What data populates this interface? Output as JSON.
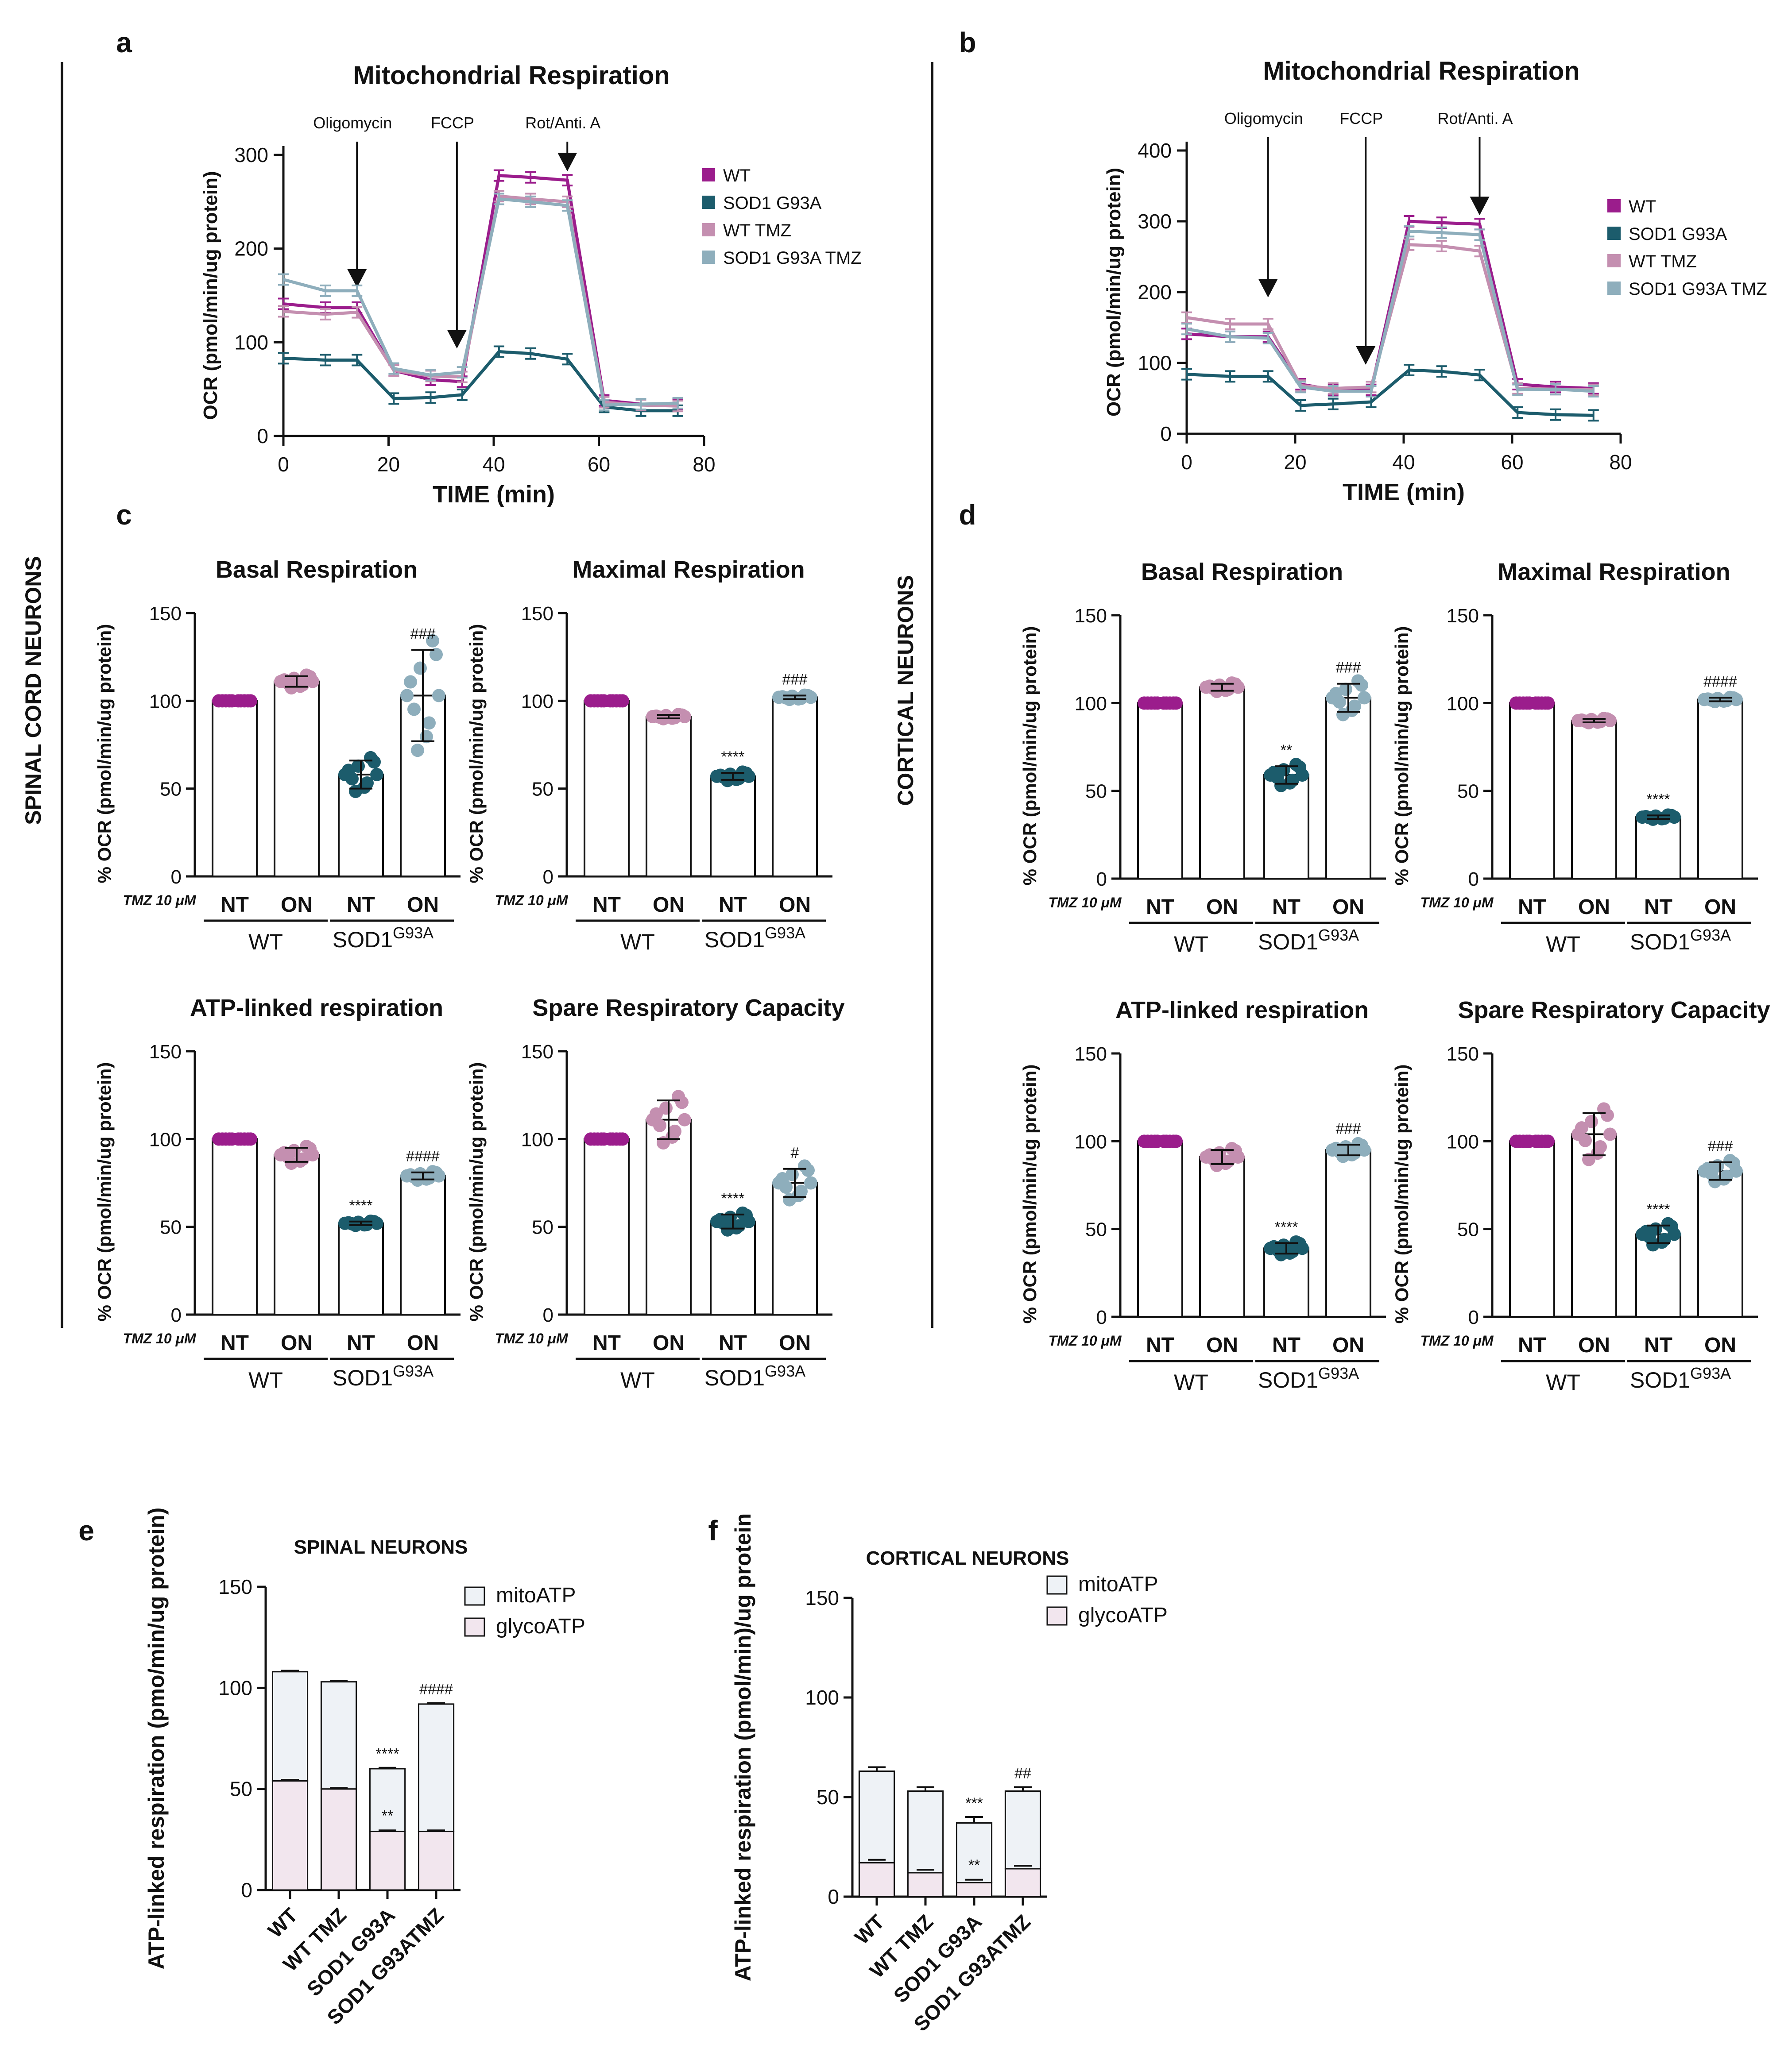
{
  "colors": {
    "wt": "#9b1d8c",
    "sod1": "#1c5c6c",
    "wt_tmz": "#c48fb0",
    "sod1_tmz": "#8eaebc",
    "axis": "#111111",
    "mito_fill": "#eef2f6",
    "glyco_fill": "#f2e6ee"
  },
  "labels": {
    "side_left": "SPINAL CORD NEURONS",
    "side_right": "CORTICAL NEURONS",
    "panel_letters": [
      "a",
      "b",
      "c",
      "d",
      "e",
      "f"
    ],
    "injections": [
      "Oligomycin",
      "FCCP",
      "Rot/Anti. A"
    ],
    "bar_xlabels": [
      "NT",
      "ON",
      "NT",
      "ON"
    ],
    "group_wt": "WT",
    "group_sod1_base": "SOD1",
    "group_sod1_sup": "G93A",
    "tmz_label": "TMZ 10 μM",
    "legend_sup": "G93A",
    "stack_xlabels": [
      "WT",
      "WT TMZ",
      "SOD1 G93A",
      "SOD1 G93ATMZ"
    ]
  },
  "chart_data": [
    {
      "id": "a",
      "type": "line",
      "title": "Mitochondrial Respiration",
      "xlabel": "TIME (min)",
      "ylabel": "OCR (pmol/min/ug protein)",
      "xlim": [
        0,
        80
      ],
      "ylim": [
        0,
        300
      ],
      "xticks": [
        0,
        20,
        40,
        60,
        80
      ],
      "yticks": [
        0,
        100,
        200,
        300
      ],
      "injections_at": [
        14,
        33,
        54
      ],
      "legend": "right",
      "x": [
        0,
        8,
        14,
        21,
        28,
        34,
        41,
        47,
        54,
        61,
        68,
        75
      ],
      "series": [
        {
          "name": "WT",
          "values": [
            141,
            137,
            137,
            70,
            60,
            58,
            278,
            276,
            273,
            38,
            34,
            34
          ]
        },
        {
          "name": "SOD1 G93A",
          "values": [
            83,
            81,
            81,
            40,
            41,
            44,
            90,
            88,
            82,
            31,
            27,
            27
          ]
        },
        {
          "name": "WT TMZ",
          "values": [
            133,
            130,
            132,
            70,
            64,
            63,
            256,
            253,
            250,
            36,
            33,
            32
          ]
        },
        {
          "name": "SOD1 G93A TMZ",
          "values": [
            167,
            155,
            155,
            72,
            65,
            68,
            253,
            250,
            246,
            33,
            34,
            35
          ]
        }
      ]
    },
    {
      "id": "b",
      "type": "line",
      "title": "Mitochondrial Respiration",
      "xlabel": "TIME (min)",
      "ylabel": "OCR (pmol/min/ug protein)",
      "xlim": [
        0,
        80
      ],
      "ylim": [
        0,
        400
      ],
      "xticks": [
        0,
        20,
        40,
        60,
        80
      ],
      "yticks": [
        0,
        100,
        200,
        300,
        400
      ],
      "injections_at": [
        15,
        33,
        54
      ],
      "legend": "right",
      "x": [
        0,
        8,
        15,
        21,
        27,
        34,
        41,
        47,
        54,
        61,
        68,
        75
      ],
      "series": [
        {
          "name": "WT",
          "values": [
            141,
            137,
            137,
            70,
            62,
            62,
            300,
            298,
            296,
            70,
            66,
            64
          ]
        },
        {
          "name": "SOD1 G93A",
          "values": [
            84,
            81,
            81,
            40,
            42,
            45,
            90,
            88,
            83,
            30,
            27,
            26
          ]
        },
        {
          "name": "WT TMZ",
          "values": [
            164,
            155,
            155,
            68,
            64,
            66,
            267,
            265,
            258,
            64,
            63,
            62
          ]
        },
        {
          "name": "SOD1 G93A TMZ",
          "values": [
            148,
            137,
            135,
            66,
            60,
            60,
            286,
            284,
            281,
            62,
            63,
            60
          ]
        }
      ]
    },
    {
      "id": "c1",
      "type": "bar",
      "title": "Basal Respiration",
      "ylabel": "% OCR (pmol/min/ug protein)",
      "ylim": [
        0,
        150
      ],
      "yticks": [
        0,
        50,
        100,
        150
      ],
      "categories": [
        "WT NT",
        "WT ON",
        "SOD1G93A NT",
        "SOD1G93A ON"
      ],
      "values": [
        100,
        111,
        58,
        103
      ],
      "errors": [
        0,
        3,
        8,
        26
      ],
      "annotations": [
        "",
        "",
        "",
        "###"
      ]
    },
    {
      "id": "c2",
      "type": "bar",
      "title": "Maximal Respiration",
      "ylabel": "% OCR (pmol/min/ug protein)",
      "ylim": [
        0,
        150
      ],
      "yticks": [
        0,
        50,
        100,
        150
      ],
      "categories": [
        "WT NT",
        "WT ON",
        "SOD1G93A NT",
        "SOD1G93A ON"
      ],
      "values": [
        100,
        91,
        57,
        102
      ],
      "errors": [
        0,
        1,
        2,
        1
      ],
      "annotations": [
        "",
        "",
        "****",
        "###"
      ]
    },
    {
      "id": "c3",
      "type": "bar",
      "title": "ATP-linked respiration",
      "ylabel": "% OCR (pmol/min/ug protein)",
      "ylim": [
        0,
        150
      ],
      "yticks": [
        0,
        50,
        100,
        150
      ],
      "categories": [
        "WT NT",
        "WT ON",
        "SOD1G93A NT",
        "SOD1G93A ON"
      ],
      "values": [
        100,
        91,
        52,
        79
      ],
      "errors": [
        0,
        4,
        1,
        2
      ],
      "annotations": [
        "",
        "",
        "****",
        "####"
      ]
    },
    {
      "id": "c4",
      "type": "bar",
      "title": "Spare Respiratory Capacity",
      "ylabel": "% OCR (pmol/min/ug protein)",
      "ylim": [
        0,
        150
      ],
      "yticks": [
        0,
        50,
        100,
        150
      ],
      "categories": [
        "WT NT",
        "WT ON",
        "SOD1G93A NT",
        "SOD1G93A ON"
      ],
      "values": [
        100,
        111,
        53,
        75
      ],
      "errors": [
        0,
        11,
        4,
        8
      ],
      "annotations": [
        "",
        "",
        "****",
        "#"
      ]
    },
    {
      "id": "d1",
      "type": "bar",
      "title": "Basal Respiration",
      "ylabel": "% OCR (pmol/min/ug protein)",
      "ylim": [
        0,
        150
      ],
      "yticks": [
        0,
        50,
        100,
        150
      ],
      "categories": [
        "WT NT",
        "WT ON",
        "SOD1G93A NT",
        "SOD1G93A ON"
      ],
      "values": [
        100,
        109,
        59,
        103
      ],
      "errors": [
        0,
        2,
        5,
        8
      ],
      "annotations": [
        "",
        "",
        "**",
        "###"
      ]
    },
    {
      "id": "d2",
      "type": "bar",
      "title": "Maximal Respiration",
      "ylabel": "% OCR (pmol/min/ug protein)",
      "ylim": [
        0,
        150
      ],
      "yticks": [
        0,
        50,
        100,
        150
      ],
      "categories": [
        "WT NT",
        "WT ON",
        "SOD1G93A NT",
        "SOD1G93A ON"
      ],
      "values": [
        100,
        90,
        35,
        102
      ],
      "errors": [
        0,
        1,
        1,
        1
      ],
      "annotations": [
        "",
        "",
        "****",
        "####"
      ]
    },
    {
      "id": "d3",
      "type": "bar",
      "title": "ATP-linked respiration",
      "ylabel": "% OCR (pmol/min/ug protein)",
      "ylim": [
        0,
        150
      ],
      "yticks": [
        0,
        50,
        100,
        150
      ],
      "categories": [
        "WT NT",
        "WT ON",
        "SOD1G93A NT",
        "SOD1G93A ON"
      ],
      "values": [
        100,
        91,
        39,
        95
      ],
      "errors": [
        0,
        4,
        3,
        3
      ],
      "annotations": [
        "",
        "",
        "****",
        "###"
      ]
    },
    {
      "id": "d4",
      "type": "bar",
      "title": "Spare Respiratory Capacity",
      "ylabel": "% OCR (pmol/min/ug protein)",
      "ylim": [
        0,
        150
      ],
      "yticks": [
        0,
        50,
        100,
        150
      ],
      "categories": [
        "WT NT",
        "WT ON",
        "SOD1G93A NT",
        "SOD1G93A ON"
      ],
      "values": [
        100,
        104,
        47,
        83
      ],
      "errors": [
        0,
        12,
        5,
        5
      ],
      "annotations": [
        "",
        "",
        "****",
        "###"
      ]
    },
    {
      "id": "e",
      "type": "bar",
      "stacked": true,
      "title": "SPINAL NEURONS",
      "ylabel": "ATP-linked respiration (pmo/min/ug protein)",
      "ylim": [
        0,
        150
      ],
      "yticks": [
        0,
        50,
        100,
        150
      ],
      "categories": [
        "WT",
        "WT TMZ",
        "SOD1 G93A",
        "SOD1 G93ATMZ"
      ],
      "series": [
        {
          "name": "glycoATP",
          "values": [
            54,
            50,
            29,
            29
          ],
          "errors": [
            0.5,
            0.5,
            0.5,
            0.5
          ]
        },
        {
          "name": "mitoATP",
          "values": [
            54,
            53,
            31,
            63
          ],
          "errors": [
            0.5,
            0.5,
            0.5,
            0.5
          ]
        }
      ],
      "totals": [
        108,
        103,
        60,
        92
      ],
      "annotations_total": [
        "",
        "",
        "****",
        "####"
      ],
      "annotations_glyco": [
        "",
        "",
        "**",
        ""
      ]
    },
    {
      "id": "f",
      "type": "bar",
      "stacked": true,
      "title": "CORTICAL NEURONS",
      "ylabel": "ATP-linked respiration (pmol/min)/ug protein",
      "ylim": [
        0,
        150
      ],
      "yticks": [
        0,
        50,
        100,
        150
      ],
      "categories": [
        "WT",
        "WT TMZ",
        "SOD1 G93A",
        "SOD1 G93ATMZ"
      ],
      "series": [
        {
          "name": "glycoATP",
          "values": [
            17,
            12,
            7,
            14
          ],
          "errors": [
            1.5,
            1.5,
            1.5,
            1.5
          ]
        },
        {
          "name": "mitoATP",
          "values": [
            46,
            41,
            30,
            39
          ],
          "errors": [
            2,
            2,
            3,
            2
          ]
        }
      ],
      "totals": [
        63,
        53,
        37,
        53
      ],
      "annotations_total": [
        "",
        "",
        "***",
        "##"
      ],
      "annotations_glyco": [
        "",
        "",
        "**",
        ""
      ]
    }
  ]
}
